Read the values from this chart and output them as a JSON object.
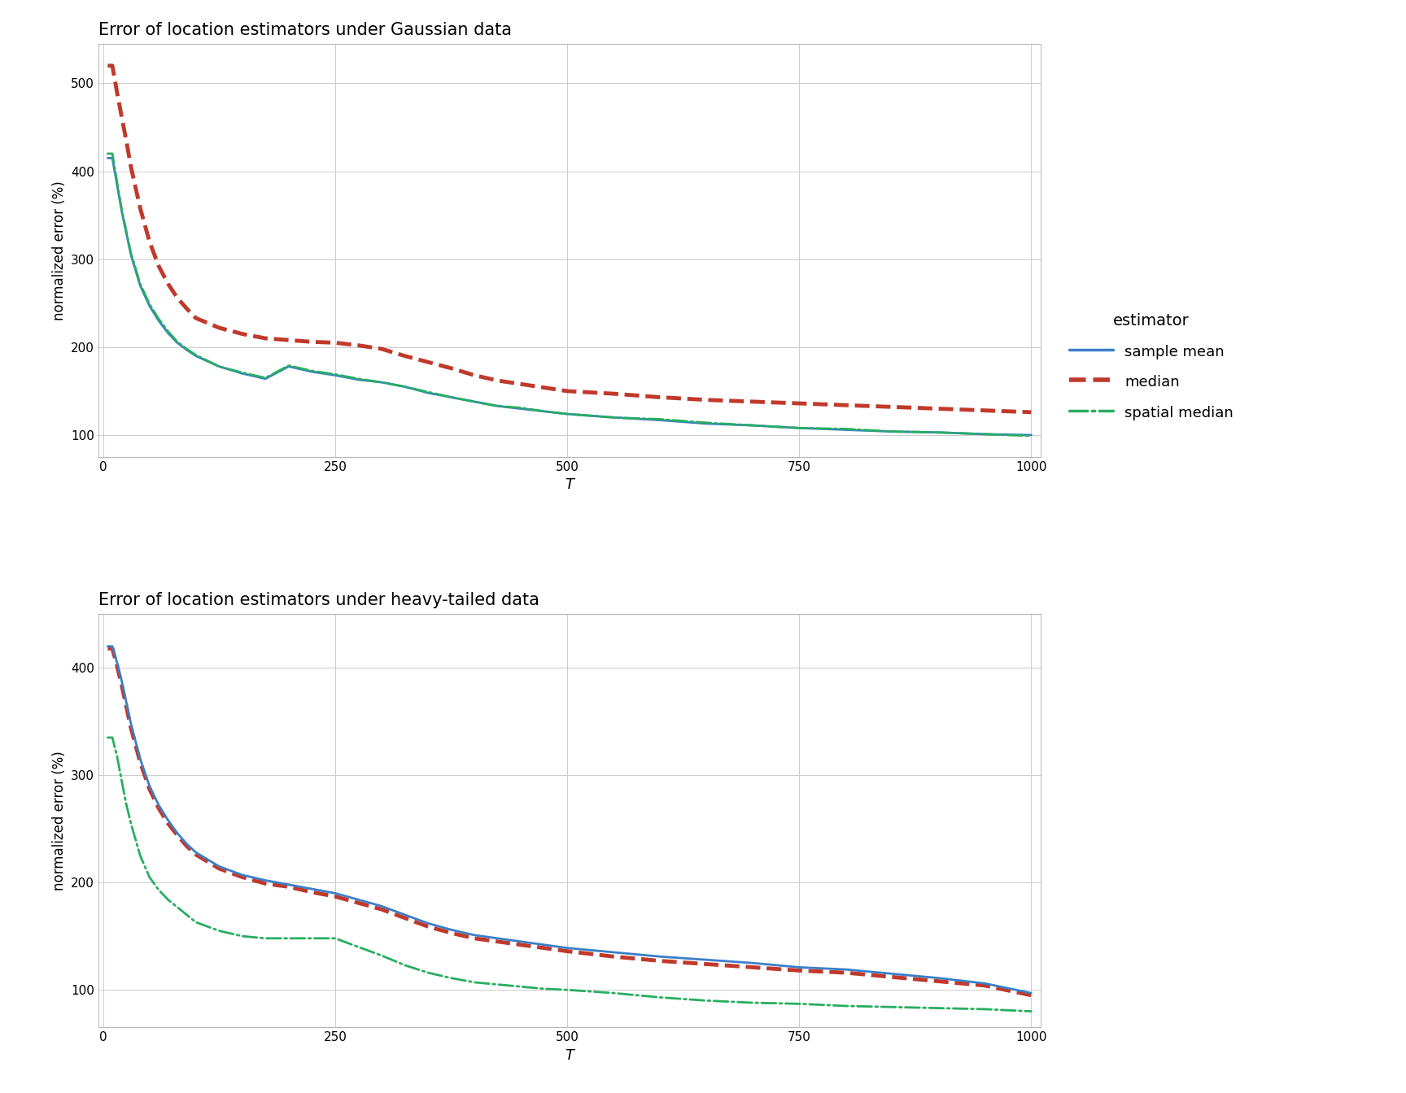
{
  "title1": "Error of location estimators under Gaussian data",
  "title2": "Error of location estimators under heavy-tailed data",
  "xlabel": "T",
  "ylabel": "normalized error (%)",
  "legend_title": "estimator",
  "legend_labels": [
    "sample mean",
    "median",
    "spatial median"
  ],
  "background_color": "#ffffff",
  "panel_background": "#ffffff",
  "grid_color": "#cccccc",
  "gaussian": {
    "x": [
      5,
      10,
      15,
      20,
      25,
      30,
      40,
      50,
      60,
      70,
      80,
      90,
      100,
      125,
      150,
      175,
      200,
      225,
      250,
      275,
      300,
      325,
      350,
      375,
      400,
      425,
      450,
      475,
      500,
      550,
      600,
      650,
      700,
      750,
      800,
      850,
      900,
      950,
      1000
    ],
    "sample_mean": [
      415,
      415,
      385,
      355,
      330,
      305,
      270,
      247,
      230,
      216,
      205,
      197,
      190,
      178,
      170,
      164,
      178,
      172,
      168,
      163,
      160,
      155,
      148,
      143,
      138,
      133,
      130,
      127,
      124,
      120,
      117,
      113,
      111,
      108,
      106,
      104,
      103,
      101,
      100
    ],
    "median": [
      520,
      520,
      490,
      462,
      435,
      405,
      358,
      320,
      292,
      272,
      256,
      244,
      233,
      222,
      215,
      210,
      208,
      206,
      205,
      202,
      198,
      190,
      183,
      176,
      168,
      162,
      158,
      154,
      150,
      147,
      143,
      140,
      138,
      136,
      134,
      132,
      130,
      128,
      126
    ],
    "spatial_median": [
      420,
      420,
      388,
      357,
      332,
      307,
      272,
      249,
      232,
      218,
      206,
      198,
      191,
      178,
      171,
      165,
      179,
      173,
      169,
      164,
      160,
      155,
      149,
      143,
      138,
      133,
      131,
      127,
      124,
      120,
      118,
      114,
      111,
      108,
      107,
      104,
      103,
      101,
      99
    ]
  },
  "heavy_tailed": {
    "x": [
      5,
      10,
      15,
      20,
      25,
      30,
      40,
      50,
      60,
      70,
      80,
      90,
      100,
      125,
      150,
      175,
      200,
      225,
      250,
      275,
      300,
      325,
      350,
      375,
      400,
      425,
      450,
      475,
      500,
      550,
      600,
      650,
      700,
      750,
      800,
      850,
      900,
      950,
      1000
    ],
    "sample_mean": [
      420,
      420,
      405,
      388,
      368,
      348,
      315,
      290,
      272,
      258,
      246,
      236,
      228,
      215,
      207,
      202,
      198,
      194,
      190,
      184,
      178,
      170,
      162,
      156,
      151,
      148,
      145,
      142,
      139,
      135,
      131,
      128,
      125,
      121,
      119,
      115,
      111,
      106,
      97
    ],
    "median": [
      418,
      418,
      402,
      384,
      364,
      344,
      312,
      287,
      269,
      255,
      244,
      234,
      226,
      213,
      205,
      199,
      196,
      191,
      187,
      181,
      175,
      167,
      159,
      153,
      148,
      145,
      142,
      139,
      136,
      131,
      127,
      124,
      121,
      118,
      116,
      112,
      108,
      104,
      95
    ],
    "spatial_median": [
      335,
      335,
      318,
      295,
      273,
      255,
      225,
      205,
      193,
      184,
      177,
      170,
      163,
      155,
      150,
      148,
      148,
      148,
      148,
      140,
      132,
      123,
      116,
      111,
      107,
      105,
      103,
      101,
      100,
      97,
      93,
      90,
      88,
      87,
      85,
      84,
      83,
      82,
      80
    ]
  },
  "mean_color": "#3B7EC8",
  "median_color": "#C0392B",
  "spatial_median_color": "#27AE60",
  "ylim1": [
    75,
    545
  ],
  "ylim2": [
    65,
    450
  ],
  "yticks1": [
    100,
    200,
    300,
    400,
    500
  ],
  "yticks2": [
    100,
    200,
    300,
    400
  ],
  "xlim": [
    -5,
    1010
  ],
  "xticks": [
    0,
    250,
    500,
    750,
    1000
  ]
}
